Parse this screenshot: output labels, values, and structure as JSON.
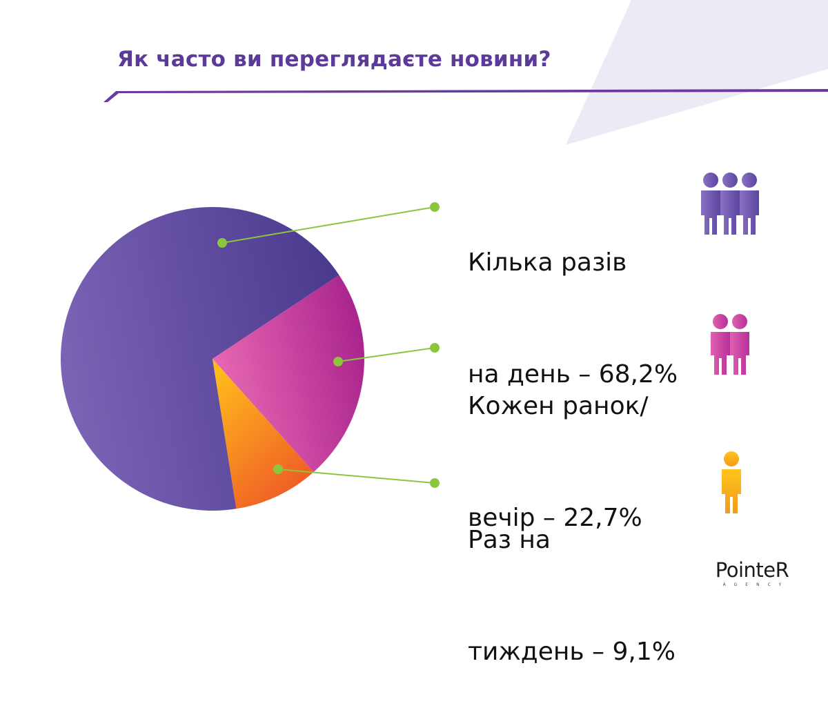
{
  "title": "Як часто ви переглядаєте новини?",
  "colors": {
    "title": "#5b3a9a",
    "accent_line": "#6a3aa0",
    "leader_line": "#8cc63f",
    "background_shape": "#ecebf5"
  },
  "chart_data": {
    "type": "pie",
    "title": "Як часто ви переглядаєте новини?",
    "slices": [
      {
        "label": "Кілька разів на день",
        "value": 68.2,
        "color_start": "#7b63b5",
        "color_end": "#4a3a8e",
        "icon": "three-people-icon"
      },
      {
        "label": "Кожен ранок/ вечір",
        "value": 22.7,
        "color_start": "#e866b2",
        "color_end": "#a8248d",
        "icon": "two-people-icon"
      },
      {
        "label": "Раз на тиждень",
        "value": 9.1,
        "color_start": "#ffb21a",
        "color_end": "#ee5526",
        "icon": "one-person-icon"
      }
    ]
  },
  "legend": [
    {
      "line1": "Кілька разів",
      "line2": "на день – 68,2%"
    },
    {
      "line1": "Кожен ранок/",
      "line2": "вечір – 22,7%"
    },
    {
      "line1": "Раз на",
      "line2": "тиждень – 9,1%"
    }
  ],
  "logo": {
    "main": "PointeR",
    "sub": "AGENCY"
  }
}
